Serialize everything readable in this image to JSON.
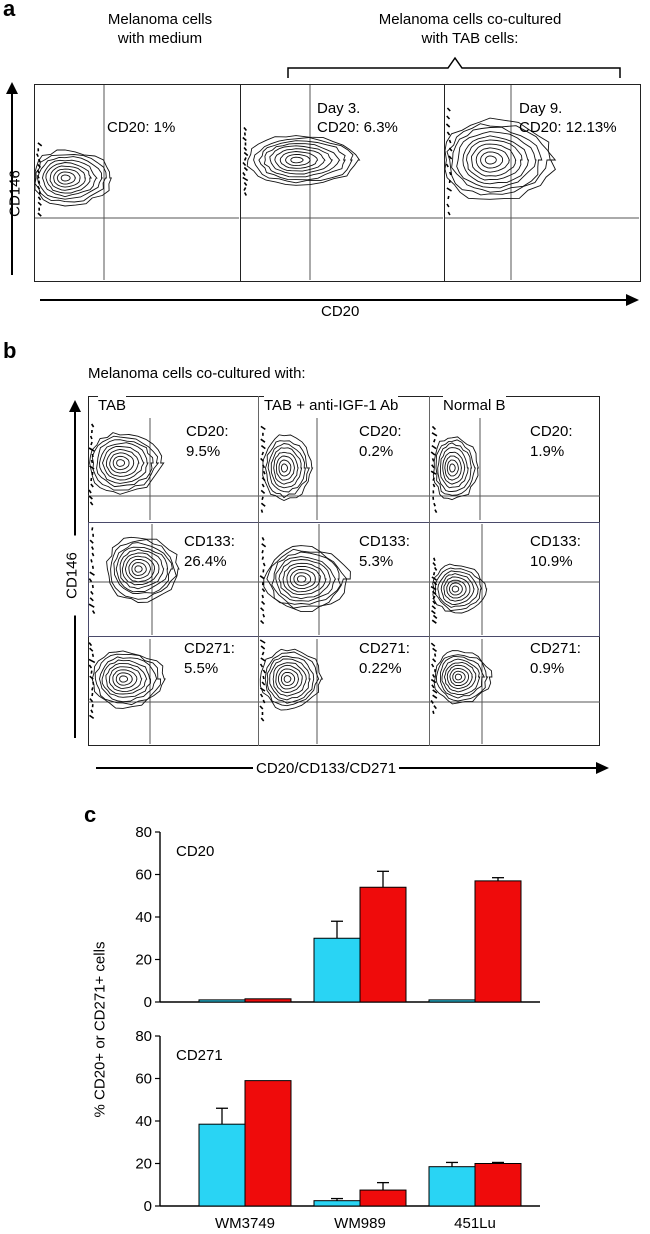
{
  "panel_a": {
    "label": "a",
    "header_left": [
      "Melanoma cells",
      "with medium"
    ],
    "header_right": [
      "Melanoma cells co-cultured",
      "with TAB cells:"
    ],
    "y_axis": "CD146",
    "x_axis": "CD20",
    "plots": [
      {
        "line1": "",
        "line2": "CD20: 1%"
      },
      {
        "line1": "Day 3.",
        "line2": "CD20: 6.3%"
      },
      {
        "line1": "Day 9.",
        "line2": "CD20: 12.13%"
      }
    ]
  },
  "panel_b": {
    "label": "b",
    "header": "Melanoma cells co-cultured with:",
    "column_titles": [
      "TAB",
      "TAB + anti-IGF-1 Ab",
      "Normal B"
    ],
    "y_axis": "CD146",
    "x_axis": "CD20/CD133/CD271",
    "rows": [
      {
        "marker": "CD20:",
        "values": [
          "9.5%",
          "0.2%",
          "1.9%"
        ]
      },
      {
        "marker": "CD133:",
        "values": [
          "26.4%",
          "5.3%",
          "10.9%"
        ]
      },
      {
        "marker": "CD271:",
        "values": [
          "5.5%",
          "0.22%",
          "0.9%"
        ]
      }
    ]
  },
  "panel_c": {
    "label": "c",
    "y_axis": "% CD20+ or CD271+ cells",
    "colors": {
      "series1": "#29d4f4",
      "series2": "#ef0b0b"
    },
    "chart_data": [
      {
        "type": "bar",
        "title": "CD20",
        "categories": [
          "WM3749",
          "WM989",
          "451Lu"
        ],
        "ylim": [
          0,
          80
        ],
        "yticks": [
          "0",
          "20",
          "40",
          "60",
          "80"
        ],
        "series": [
          {
            "values": [
              1,
              30,
              1
            ],
            "errors": [
              0,
              8,
              0
            ]
          },
          {
            "values": [
              1.5,
              54,
              57
            ],
            "errors": [
              0,
              7.5,
              1.5
            ]
          }
        ]
      },
      {
        "type": "bar",
        "title": "CD271",
        "categories": [
          "WM3749",
          "WM989",
          "451Lu"
        ],
        "ylim": [
          0,
          80
        ],
        "yticks": [
          "0",
          "20",
          "40",
          "60",
          "80"
        ],
        "series": [
          {
            "values": [
              38.5,
              2.5,
              18.5
            ],
            "errors": [
              7.5,
              1,
              2
            ]
          },
          {
            "values": [
              59,
              7.5,
              20
            ],
            "errors": [
              0,
              3.5,
              0.5
            ]
          }
        ]
      }
    ]
  }
}
